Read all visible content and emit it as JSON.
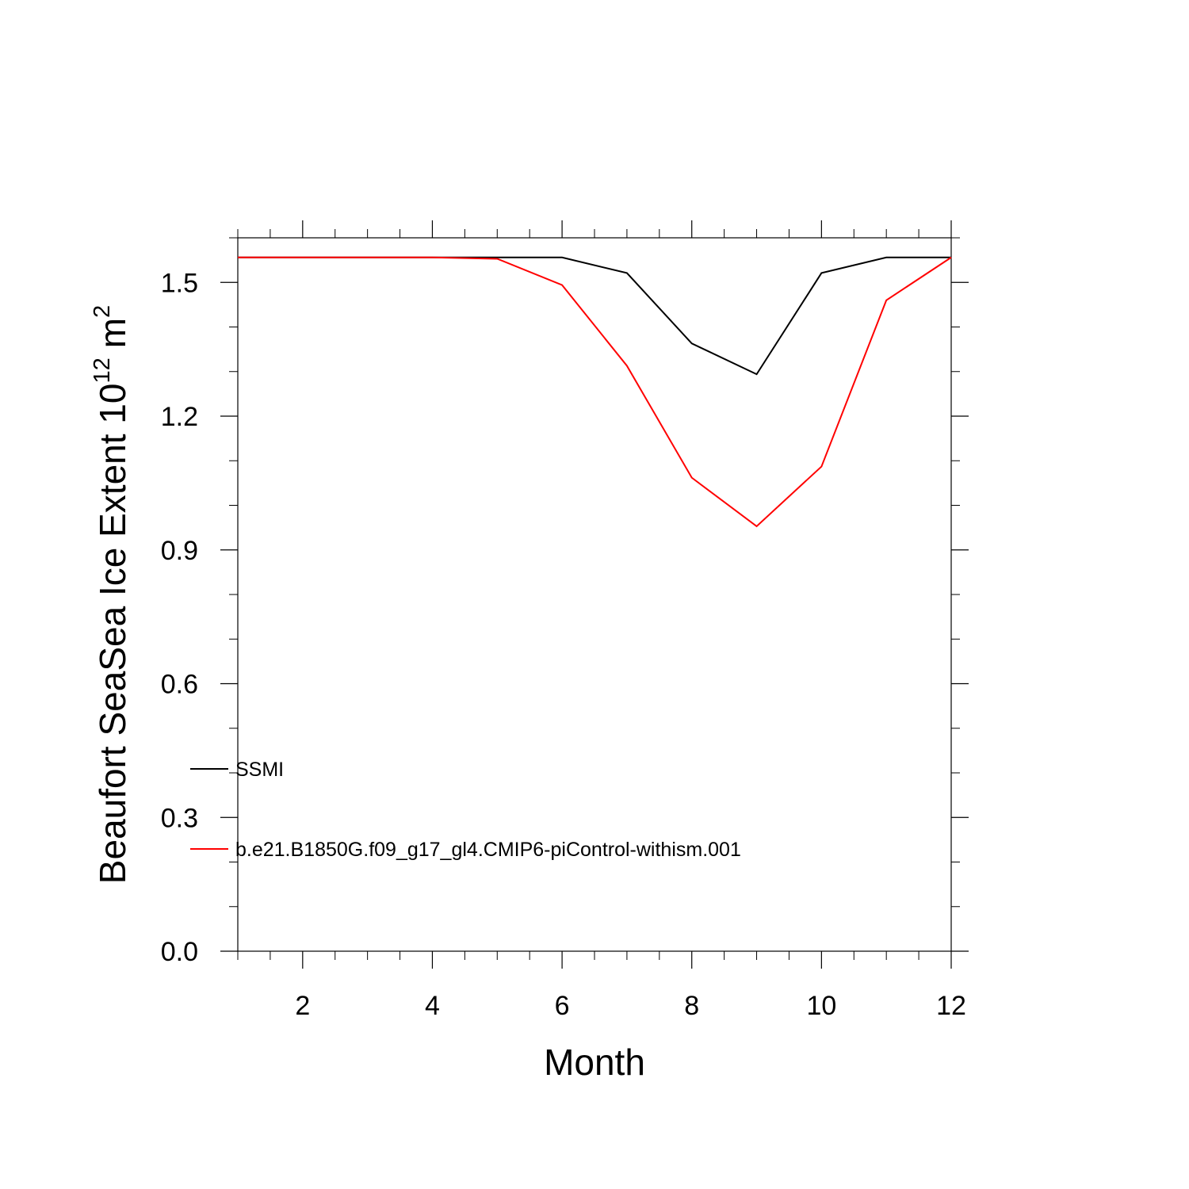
{
  "chart_data": {
    "type": "line",
    "title": "",
    "xlabel": "Month",
    "ylabel": "Beaufort SeaSea Ice Extent 10",
    "ylabel_sup": "12",
    "ylabel_unit": "m",
    "ylabel_unit_sup": "2",
    "xlim": [
      1,
      12
    ],
    "ylim": [
      0.0,
      1.6
    ],
    "x_ticks": [
      2,
      4,
      6,
      8,
      10,
      12
    ],
    "x_tick_labels": [
      "2",
      "4",
      "6",
      "8",
      "10",
      "12"
    ],
    "y_ticks": [
      0.0,
      0.3,
      0.6,
      0.9,
      1.2,
      1.5
    ],
    "y_tick_labels": [
      "0.0",
      "0.3",
      "0.6",
      "0.9",
      "1.2",
      "1.5"
    ],
    "grid": false,
    "legend_position": "left",
    "x": [
      1,
      2,
      3,
      4,
      5,
      6,
      7,
      8,
      9,
      10,
      11,
      12
    ],
    "series": [
      {
        "name": "SSMI",
        "color": "#000000",
        "values": [
          1.556,
          1.556,
          1.556,
          1.556,
          1.556,
          1.556,
          1.521,
          1.363,
          1.294,
          1.521,
          1.556,
          1.556
        ]
      },
      {
        "name": "b.e21.B1850G.f09_g17_gl4.CMIP6-piControl-withism.001",
        "color": "#ff0000",
        "values": [
          1.556,
          1.556,
          1.556,
          1.556,
          1.553,
          1.494,
          1.313,
          1.062,
          0.953,
          1.087,
          1.46,
          1.556
        ]
      }
    ]
  }
}
